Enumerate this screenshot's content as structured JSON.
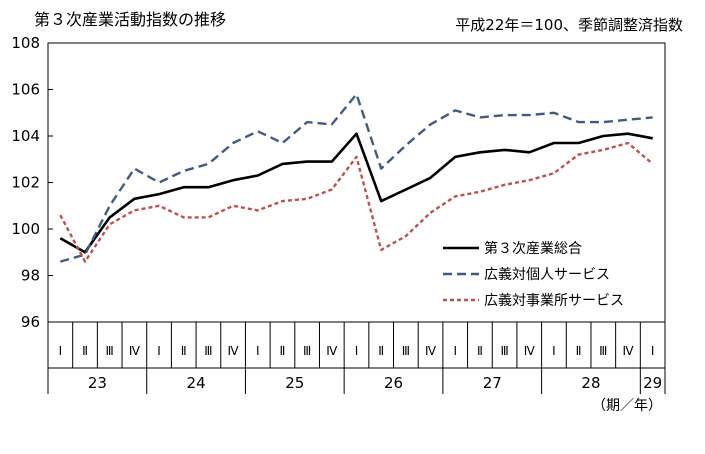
{
  "chart_data": {
    "type": "line",
    "title": "第３次産業活動指数の推移",
    "note": "平成22年＝100、季節調整済指数",
    "xlabel": "（期／年）",
    "ylim": [
      96,
      108
    ],
    "yticks": [
      96,
      98,
      100,
      102,
      104,
      106,
      108
    ],
    "quarter_labels": [
      "Ⅰ",
      "Ⅱ",
      "Ⅲ",
      "Ⅳ",
      "Ⅰ",
      "Ⅱ",
      "Ⅲ",
      "Ⅳ",
      "Ⅰ",
      "Ⅱ",
      "Ⅲ",
      "Ⅳ",
      "Ⅰ",
      "Ⅱ",
      "Ⅲ",
      "Ⅳ",
      "Ⅰ",
      "Ⅱ",
      "Ⅲ",
      "Ⅳ",
      "Ⅰ",
      "Ⅱ",
      "Ⅲ",
      "Ⅳ",
      "Ⅰ"
    ],
    "years": [
      {
        "label": "23",
        "start": 0,
        "count": 4
      },
      {
        "label": "24",
        "start": 4,
        "count": 4
      },
      {
        "label": "25",
        "start": 8,
        "count": 4
      },
      {
        "label": "26",
        "start": 12,
        "count": 4
      },
      {
        "label": "27",
        "start": 16,
        "count": 4
      },
      {
        "label": "28",
        "start": 20,
        "count": 4
      },
      {
        "label": "29",
        "start": 24,
        "count": 1
      }
    ],
    "legend_position": "right-center",
    "series": [
      {
        "name": "第３次産業総合",
        "color": "#000000",
        "style": "solid",
        "values": [
          99.6,
          99.0,
          100.5,
          101.3,
          101.5,
          101.8,
          101.8,
          102.1,
          102.3,
          102.8,
          102.9,
          102.9,
          104.1,
          101.2,
          101.7,
          102.2,
          103.1,
          103.3,
          103.4,
          103.3,
          103.7,
          103.7,
          104.0,
          104.1,
          103.9
        ]
      },
      {
        "name": "広義対個人サービス",
        "color": "#3f5d80",
        "style": "dash",
        "values": [
          98.6,
          98.9,
          101.0,
          102.6,
          102.0,
          102.5,
          102.8,
          103.7,
          104.2,
          103.7,
          104.6,
          104.5,
          105.8,
          102.6,
          103.6,
          104.5,
          105.1,
          104.8,
          104.9,
          104.9,
          105.0,
          104.6,
          104.6,
          104.7,
          104.8
        ]
      },
      {
        "name": "広義対事業所サービス",
        "color": "#c0504d",
        "style": "dot",
        "values": [
          100.6,
          98.6,
          100.2,
          100.8,
          101.0,
          100.5,
          100.5,
          101.0,
          100.8,
          101.2,
          101.3,
          101.7,
          103.1,
          99.1,
          99.7,
          100.7,
          101.4,
          101.6,
          101.9,
          102.1,
          102.4,
          103.2,
          103.4,
          103.7,
          102.8
        ]
      }
    ]
  }
}
